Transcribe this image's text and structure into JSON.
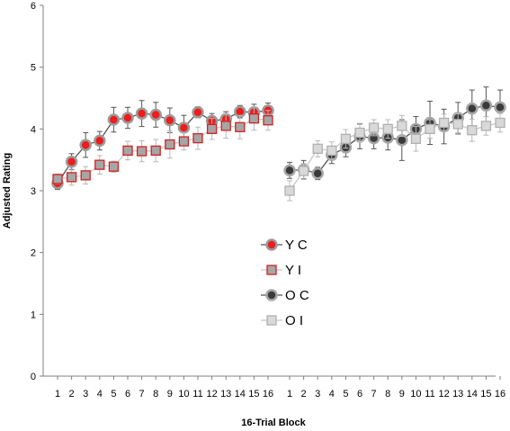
{
  "chart_data": {
    "type": "line",
    "xlabel": "16-Trial Block",
    "ylabel": "Adjusted Rating",
    "ylim": [
      0,
      6
    ],
    "yticks": [
      "0",
      "1",
      "2",
      "3",
      "4",
      "5",
      "6"
    ],
    "grid": false,
    "legend_position": "center",
    "groups": [
      {
        "categories": [
          "1",
          "2",
          "3",
          "4",
          "5",
          "6",
          "7",
          "8",
          "9",
          "10",
          "11",
          "12",
          "13",
          "14",
          "15",
          "16"
        ]
      },
      {
        "categories": [
          "1",
          "2",
          "3",
          "4",
          "5",
          "6",
          "7",
          "8",
          "9",
          "10",
          "11",
          "12",
          "13",
          "14",
          "15",
          "16"
        ]
      }
    ],
    "series": [
      {
        "name": "Y C",
        "group": 0,
        "marker": "circle",
        "fill": "#ee1c1c",
        "ring": "#9b9b9b",
        "line": "#555555",
        "values": [
          3.12,
          3.47,
          3.74,
          3.81,
          4.15,
          4.18,
          4.25,
          4.23,
          4.14,
          4.02,
          4.27,
          4.13,
          4.16,
          4.28,
          4.27,
          4.3
        ],
        "errors": [
          0.1,
          0.13,
          0.2,
          0.15,
          0.2,
          0.17,
          0.21,
          0.2,
          0.2,
          0.2,
          0.09,
          0.12,
          0.12,
          0.1,
          0.13,
          0.12
        ]
      },
      {
        "name": "Y I",
        "group": 0,
        "marker": "square",
        "fill": "#a6a6a6",
        "ring": "#d42020",
        "line": "#c8c8c8",
        "values": [
          3.19,
          3.22,
          3.25,
          3.42,
          3.39,
          3.65,
          3.64,
          3.65,
          3.75,
          3.8,
          3.85,
          4.0,
          4.05,
          4.03,
          4.17,
          4.14
        ],
        "errors": [
          0.08,
          0.13,
          0.14,
          0.15,
          0.09,
          0.15,
          0.17,
          0.18,
          0.22,
          0.14,
          0.18,
          0.17,
          0.2,
          0.19,
          0.19,
          0.16
        ]
      },
      {
        "name": "O C",
        "group": 1,
        "marker": "circle",
        "fill": "#3a3a3a",
        "ring": "#a6a6a6",
        "line": "#555555",
        "values": [
          3.33,
          3.34,
          3.28,
          3.58,
          3.7,
          3.88,
          3.85,
          3.86,
          3.82,
          4.0,
          4.1,
          4.04,
          4.18,
          4.33,
          4.38,
          4.35
        ],
        "errors": [
          0.13,
          0.15,
          0.1,
          0.14,
          0.15,
          0.2,
          0.17,
          0.2,
          0.33,
          0.2,
          0.35,
          0.28,
          0.25,
          0.3,
          0.3,
          0.28
        ]
      },
      {
        "name": "O I",
        "group": 1,
        "marker": "square",
        "fill": "#d9d9d9",
        "ring": "#b0b0b0",
        "line": "#c8c8c8",
        "values": [
          3.0,
          3.32,
          3.68,
          3.65,
          3.84,
          3.94,
          4.02,
          4.0,
          4.05,
          3.84,
          4.0,
          4.1,
          4.08,
          3.98,
          4.05,
          4.1
        ],
        "errors": [
          0.16,
          0.12,
          0.13,
          0.14,
          0.15,
          0.15,
          0.13,
          0.15,
          0.17,
          0.2,
          0.15,
          0.14,
          0.17,
          0.18,
          0.15,
          0.15
        ]
      }
    ]
  }
}
